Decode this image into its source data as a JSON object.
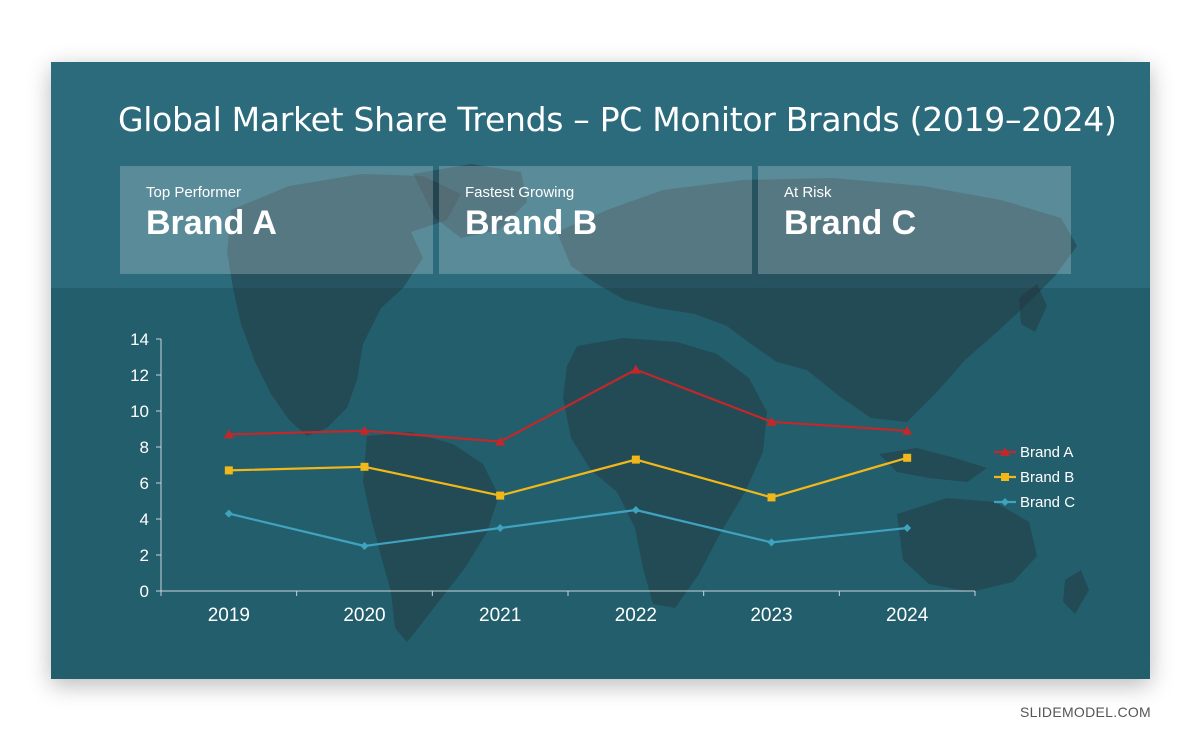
{
  "slide": {
    "title": "Global Market Share Trends – PC Monitor Brands (2019–2024)",
    "background_color": "#2b6b7c",
    "lower_panel_color": "#235e6c"
  },
  "cards": [
    {
      "label": "Top Performer",
      "value": "Brand A"
    },
    {
      "label": "Fastest Growing",
      "value": "Brand B"
    },
    {
      "label": "At Risk",
      "value": "Brand C"
    }
  ],
  "chart_data": {
    "type": "line",
    "categories": [
      "2019",
      "2020",
      "2021",
      "2022",
      "2023",
      "2024"
    ],
    "series": [
      {
        "name": "Brand A",
        "color": "#c0282a",
        "marker": "triangle",
        "values": [
          8.7,
          8.9,
          8.3,
          12.3,
          9.4,
          8.9
        ]
      },
      {
        "name": "Brand B",
        "color": "#f2b81a",
        "marker": "square",
        "values": [
          6.7,
          6.9,
          5.3,
          7.3,
          5.2,
          7.4
        ]
      },
      {
        "name": "Brand C",
        "color": "#3fa3bf",
        "marker": "diamond",
        "values": [
          4.3,
          2.5,
          3.5,
          4.5,
          2.7,
          3.5
        ]
      }
    ],
    "ylim": [
      0,
      14
    ],
    "yticks": [
      0,
      2,
      4,
      6,
      8,
      10,
      12,
      14
    ],
    "grid": false,
    "legend_position": "right"
  },
  "footer": {
    "watermark": "SLIDEMODEL.COM"
  }
}
